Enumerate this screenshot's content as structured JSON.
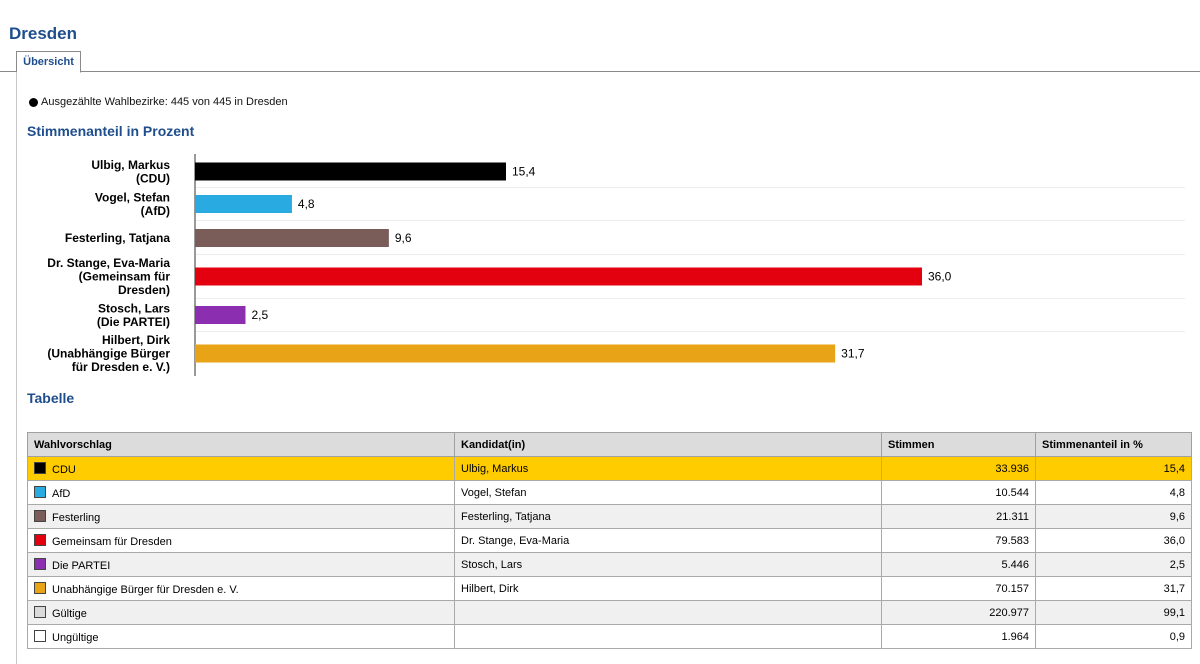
{
  "page": {
    "title": "Dresden",
    "tab_label": "Übersicht",
    "status_text": "Ausgezählte Wahlbezirke: 445 von 445 in Dresden",
    "chart_heading": "Stimmenanteil in Prozent",
    "table_heading": "Tabelle"
  },
  "chart_data": {
    "type": "bar",
    "orientation": "horizontal",
    "title": "Stimmenanteil in Prozent",
    "categories": [
      [
        "Ulbig, Markus",
        "(CDU)"
      ],
      [
        "Vogel, Stefan",
        "(AfD)"
      ],
      [
        "Festerling, Tatjana"
      ],
      [
        "Dr. Stange, Eva-Maria",
        "(Gemeinsam für",
        "Dresden)"
      ],
      [
        "Stosch, Lars",
        "(Die PARTEI)"
      ],
      [
        "Hilbert, Dirk",
        "(Unabhängige Bürger",
        "für Dresden e. V.)"
      ]
    ],
    "values": [
      15.4,
      4.8,
      9.6,
      36.0,
      2.5,
      31.7
    ],
    "value_labels": [
      "15,4",
      "4,8",
      "9,6",
      "36,0",
      "2,5",
      "31,7"
    ],
    "colors": [
      "#000000",
      "#29abe2",
      "#7a5c58",
      "#e3000f",
      "#8b2fb0",
      "#e8a317"
    ],
    "xlim": [
      0,
      36.0
    ],
    "grid": false
  },
  "table": {
    "columns": [
      "Wahlvorschlag",
      "Kandidat(in)",
      "Stimmen",
      "Stimmenanteil in %"
    ],
    "rows": [
      {
        "color": "#000000",
        "party": "CDU",
        "candidate": "Ulbig, Markus",
        "votes": "33.936",
        "share": "15,4",
        "highlight": true
      },
      {
        "color": "#29abe2",
        "party": "AfD",
        "candidate": "Vogel, Stefan",
        "votes": "10.544",
        "share": "4,8"
      },
      {
        "color": "#7a5c58",
        "party": "Festerling",
        "candidate": "Festerling, Tatjana",
        "votes": "21.311",
        "share": "9,6"
      },
      {
        "color": "#e3000f",
        "party": "Gemeinsam für Dresden",
        "candidate": "Dr. Stange, Eva-Maria",
        "votes": "79.583",
        "share": "36,0"
      },
      {
        "color": "#8b2fb0",
        "party": "Die PARTEI",
        "candidate": "Stosch, Lars",
        "votes": "5.446",
        "share": "2,5"
      },
      {
        "color": "#e8a317",
        "party": "Unabhängige Bürger für Dresden e. V.",
        "candidate": "Hilbert, Dirk",
        "votes": "70.157",
        "share": "31,7"
      },
      {
        "color": "#d9d9d9",
        "party": "Gültige",
        "candidate": "",
        "votes": "220.977",
        "share": "99,1"
      },
      {
        "color": "#ffffff",
        "party": "Ungültige",
        "candidate": "",
        "votes": "1.964",
        "share": "0,9"
      }
    ]
  }
}
